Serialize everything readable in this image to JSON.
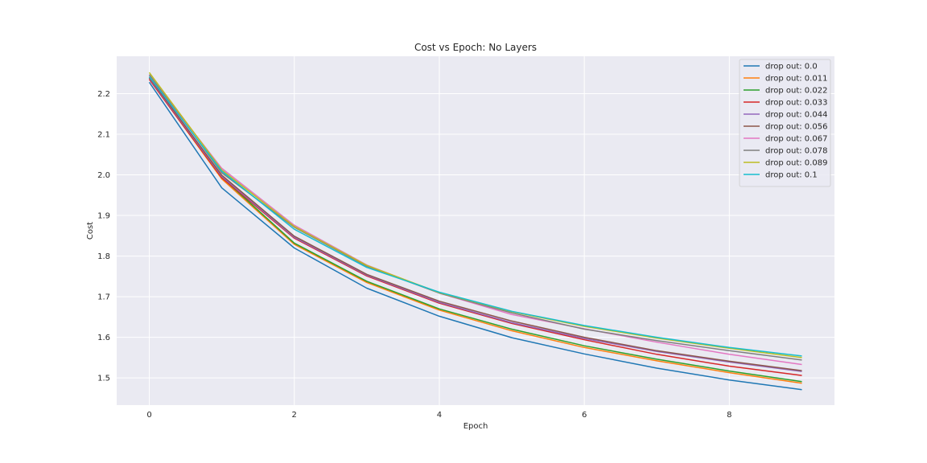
{
  "chart_data": {
    "type": "line",
    "title": "Cost vs Epoch: No Layers",
    "xlabel": "Epoch",
    "ylabel": "Cost",
    "xlim": [
      -0.45,
      9.45
    ],
    "ylim": [
      1.433,
      2.292
    ],
    "xticks": [
      0,
      2,
      4,
      6,
      8
    ],
    "yticks": [
      1.5,
      1.6,
      1.7,
      1.8,
      1.9,
      2.0,
      2.1,
      2.2
    ],
    "ytick_labels": [
      "1.5",
      "1.6",
      "1.7",
      "1.8",
      "1.9",
      "2.0",
      "2.1",
      "2.2"
    ],
    "grid": true,
    "legend_position": "top-right",
    "x": [
      0,
      1,
      2,
      3,
      4,
      5,
      6,
      7,
      8,
      9
    ],
    "series": [
      {
        "name": "drop out: 0.0",
        "color": "#1f77b4",
        "values": [
          2.228,
          1.968,
          1.82,
          1.721,
          1.652,
          1.599,
          1.559,
          1.524,
          1.495,
          1.471
        ]
      },
      {
        "name": "drop out: 0.011",
        "color": "#ff7f0e",
        "values": [
          2.236,
          1.99,
          1.829,
          1.735,
          1.667,
          1.616,
          1.575,
          1.542,
          1.513,
          1.487
        ]
      },
      {
        "name": "drop out: 0.022",
        "color": "#2ca02c",
        "values": [
          2.239,
          1.994,
          1.832,
          1.738,
          1.67,
          1.62,
          1.579,
          1.546,
          1.517,
          1.491
        ]
      },
      {
        "name": "drop out: 0.033",
        "color": "#d62728",
        "values": [
          2.235,
          1.993,
          1.844,
          1.751,
          1.684,
          1.634,
          1.594,
          1.558,
          1.529,
          1.506
        ]
      },
      {
        "name": "drop out: 0.044",
        "color": "#9467bd",
        "values": [
          2.238,
          1.996,
          1.846,
          1.753,
          1.686,
          1.636,
          1.597,
          1.565,
          1.539,
          1.516
        ]
      },
      {
        "name": "drop out: 0.056",
        "color": "#8c564b",
        "values": [
          2.24,
          1.999,
          1.849,
          1.755,
          1.689,
          1.64,
          1.6,
          1.567,
          1.541,
          1.518
        ]
      },
      {
        "name": "drop out: 0.067",
        "color": "#e377c2",
        "values": [
          2.245,
          2.016,
          1.876,
          1.778,
          1.709,
          1.656,
          1.621,
          1.588,
          1.558,
          1.533
        ]
      },
      {
        "name": "drop out: 0.078",
        "color": "#7f7f7f",
        "values": [
          2.247,
          2.005,
          1.871,
          1.775,
          1.709,
          1.66,
          1.62,
          1.592,
          1.567,
          1.544
        ]
      },
      {
        "name": "drop out: 0.089",
        "color": "#bcbd22",
        "values": [
          2.252,
          2.012,
          1.873,
          1.777,
          1.71,
          1.663,
          1.627,
          1.598,
          1.573,
          1.55
        ]
      },
      {
        "name": "drop out: 0.1",
        "color": "#17becf",
        "values": [
          2.242,
          2.009,
          1.866,
          1.772,
          1.711,
          1.664,
          1.629,
          1.6,
          1.575,
          1.554
        ]
      }
    ],
    "colors": {
      "plot_background": "#eaeaf2",
      "grid": "#ffffff",
      "text": "#262626"
    }
  }
}
